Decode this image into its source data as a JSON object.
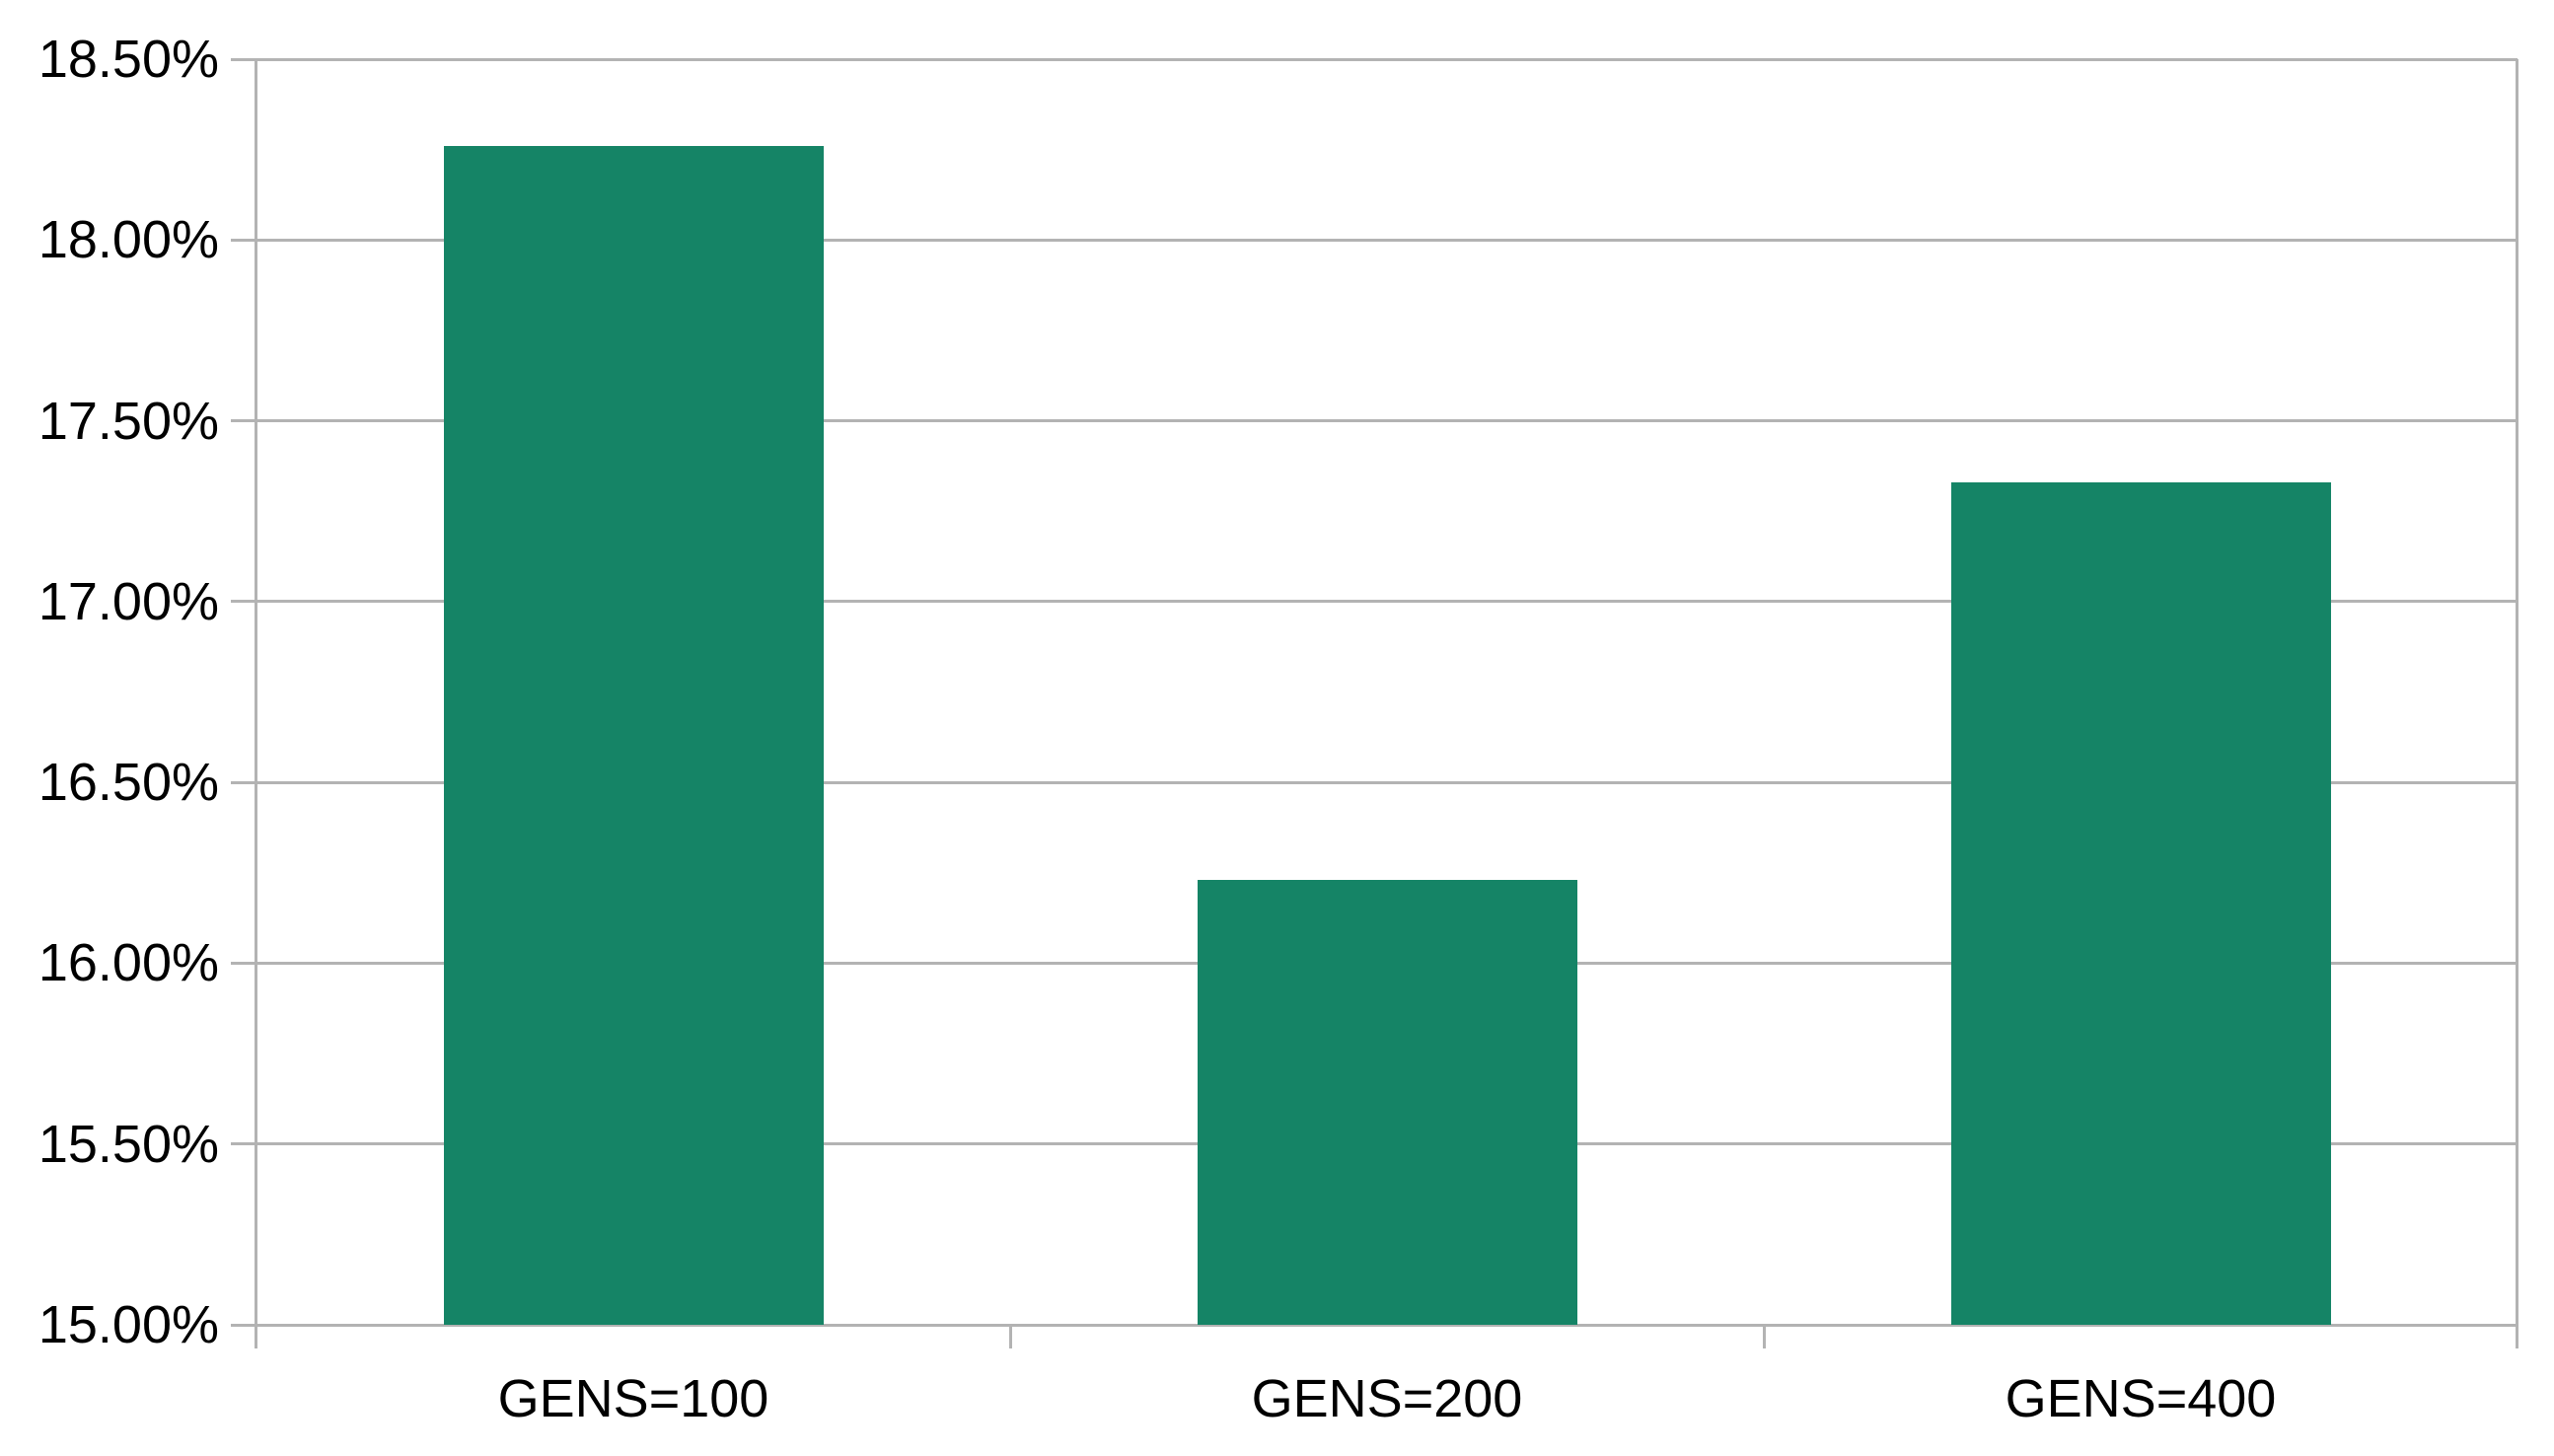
{
  "chart_data": {
    "type": "bar",
    "title": "",
    "xlabel": "",
    "ylabel": "",
    "categories": [
      "GENS=100",
      "GENS=200",
      "GENS=400"
    ],
    "values": [
      18.26,
      16.23,
      17.33
    ],
    "value_unit": "percent",
    "series_count": 1,
    "ylim": [
      15.0,
      18.5
    ],
    "ytick_step": 0.5,
    "ytick_labels": [
      "15.00%",
      "15.50%",
      "16.00%",
      "16.50%",
      "17.00%",
      "17.50%",
      "18.00%",
      "18.50%"
    ],
    "grid": true,
    "legend": "none",
    "colors": {
      "bar_fill": "#158466",
      "grid_line": "#b3b3b3",
      "axis_line": "#b3b3b3",
      "label_text": "#000000",
      "background": "#ffffff"
    }
  }
}
